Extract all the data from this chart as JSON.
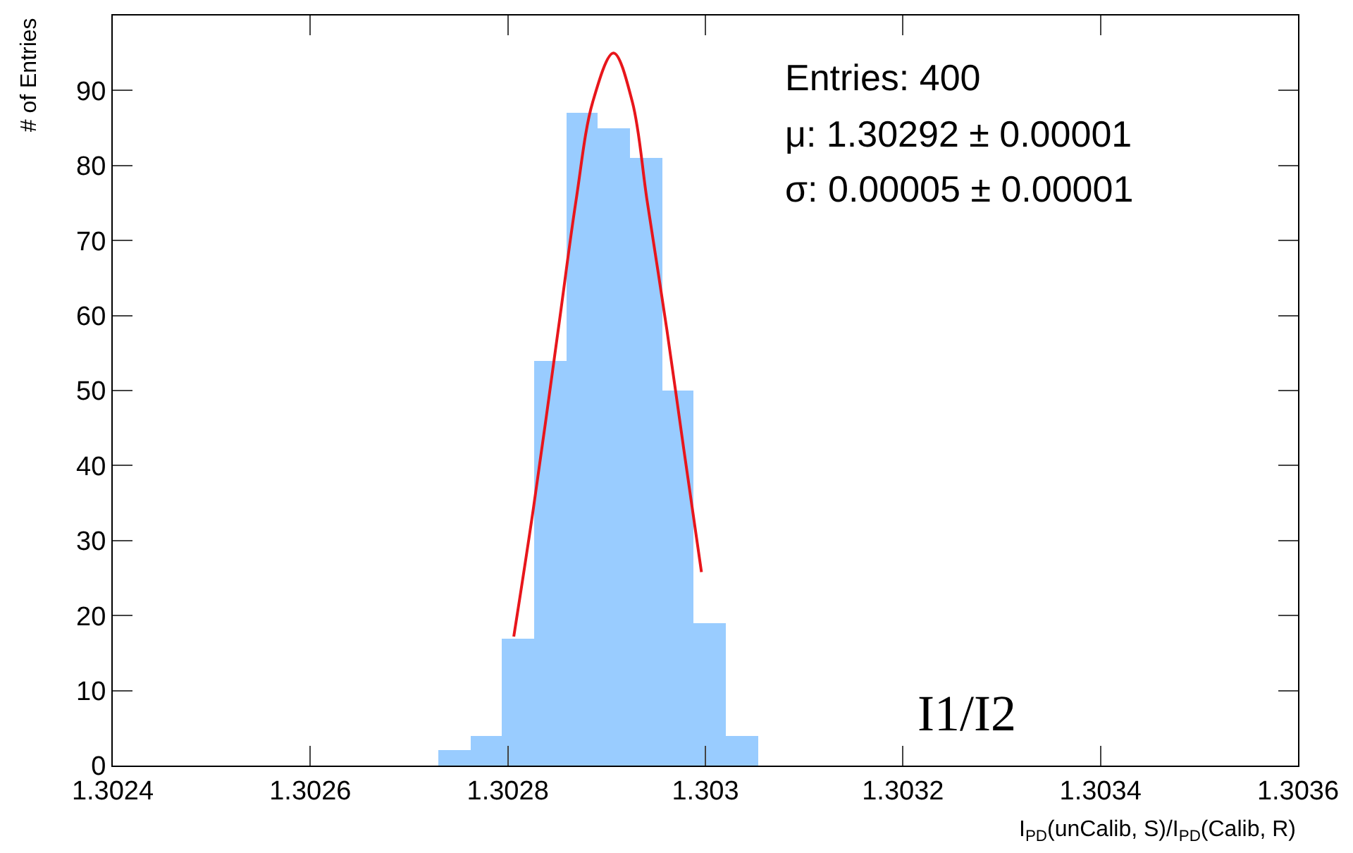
{
  "chart_data": {
    "type": "histogram",
    "xlabel": "I$_{PD}$(unCalib, S)/I$_{PD}$(Calib, R)",
    "ylabel": "# of Entries",
    "series": [
      {
        "color": "#99ccff",
        "bins": [
          1.30273,
          1.302762,
          1.302794,
          1.302827,
          1.302859,
          1.302891,
          1.302924,
          1.302956,
          1.302988,
          1.303021,
          1.303053
        ],
        "values": [
          2,
          4,
          17,
          54,
          87,
          85,
          81,
          50,
          19,
          4
        ]
      },
      {
        "type": "line",
        "color": "#e8161b",
        "x": [
          1.302806,
          1.302826,
          1.302851,
          1.302869,
          1.302886,
          1.302907,
          1.302926,
          1.302941,
          1.302961,
          1.302978,
          1.302996
        ],
        "values": [
          17.2,
          34.4,
          58.1,
          75.3,
          88.5,
          95.0,
          88.5,
          75.3,
          58.1,
          42.3,
          25.8
        ]
      }
    ],
    "annotations": [
      "Entries: 400",
      "μ: 1.30292 ± 0.00001",
      "σ: 0.00005 ± 0.00001",
      "I1/I2"
    ],
    "xlim": [
      1.3024,
      1.3036
    ],
    "xticks": [
      1.3024,
      1.3026,
      1.3028,
      1.303,
      1.3032,
      1.3034,
      1.3036
    ],
    "ylim": [
      0,
      100
    ],
    "yticks": [
      0,
      10,
      20,
      30,
      40,
      50,
      60,
      70,
      80,
      90
    ]
  }
}
